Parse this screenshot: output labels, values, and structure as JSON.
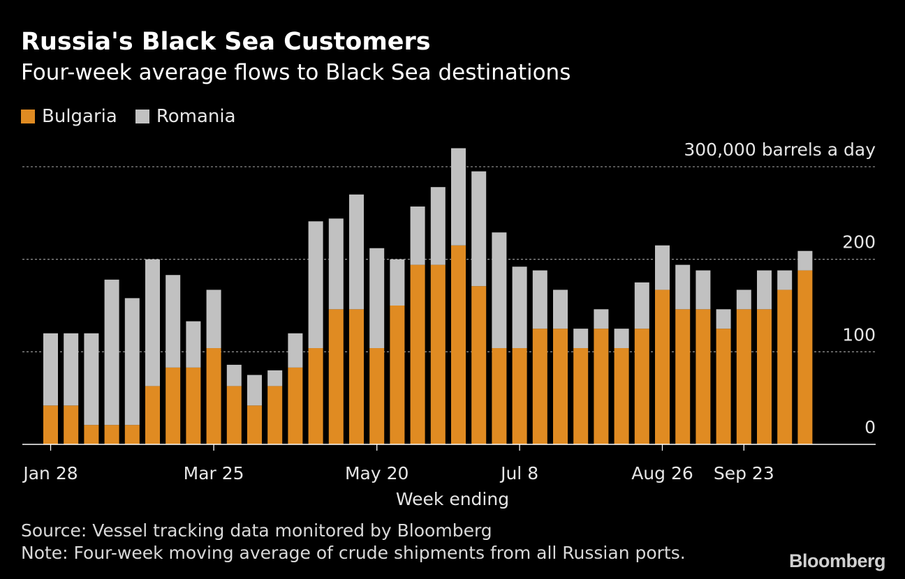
{
  "header": {
    "title": "Russia's Black Sea Customers",
    "subtitle": "Four-week average flows to Black Sea destinations"
  },
  "footer": {
    "source": "Source: Vessel tracking data monitored by Bloomberg",
    "note": "Note: Four-week moving average of crude shipments from all Russian ports.",
    "brand": "Bloomberg"
  },
  "colors": {
    "background": "#000000",
    "bulgaria": "#e08b22",
    "romania": "#c1c1c1",
    "grid": "#8a8a8a",
    "axis": "#ffffff"
  },
  "chart_data": {
    "type": "bar",
    "stacked": true,
    "title": "Russia's Black Sea Customers",
    "subtitle": "Four-week average flows to Black Sea destinations",
    "xlabel": "Week ending",
    "ylabel": "",
    "ylim": [
      0,
      300
    ],
    "y_ticks": [
      {
        "value": 0,
        "label": "0"
      },
      {
        "value": 100,
        "label": "100"
      },
      {
        "value": 200,
        "label": "200"
      },
      {
        "value": 300,
        "label": "300,000 barrels a day"
      }
    ],
    "x_ticks": [
      {
        "index": 0,
        "label": "Jan 28"
      },
      {
        "index": 8,
        "label": "Mar 25"
      },
      {
        "index": 16,
        "label": "May 20"
      },
      {
        "index": 23,
        "label": "Jul 8"
      },
      {
        "index": 30,
        "label": "Aug 26"
      },
      {
        "index": 34,
        "label": "Sep 23"
      }
    ],
    "grid": true,
    "legend_position": "top-left",
    "series": [
      {
        "name": "Bulgaria",
        "color": "#e08b22",
        "values": [
          42,
          42,
          21,
          21,
          21,
          63,
          83,
          83,
          104,
          63,
          42,
          63,
          83,
          104,
          146,
          146,
          104,
          150,
          194,
          194,
          215,
          171,
          104,
          104,
          125,
          125,
          104,
          125,
          104,
          125,
          167,
          146,
          146,
          125,
          146,
          146,
          167,
          188
        ]
      },
      {
        "name": "Romania",
        "color": "#c1c1c1",
        "values": [
          78,
          78,
          99,
          157,
          137,
          137,
          100,
          50,
          63,
          23,
          33,
          17,
          37,
          137,
          98,
          124,
          108,
          50,
          63,
          84,
          105,
          124,
          125,
          88,
          63,
          42,
          21,
          21,
          21,
          50,
          48,
          48,
          42,
          21,
          21,
          42,
          21,
          21
        ]
      }
    ]
  }
}
